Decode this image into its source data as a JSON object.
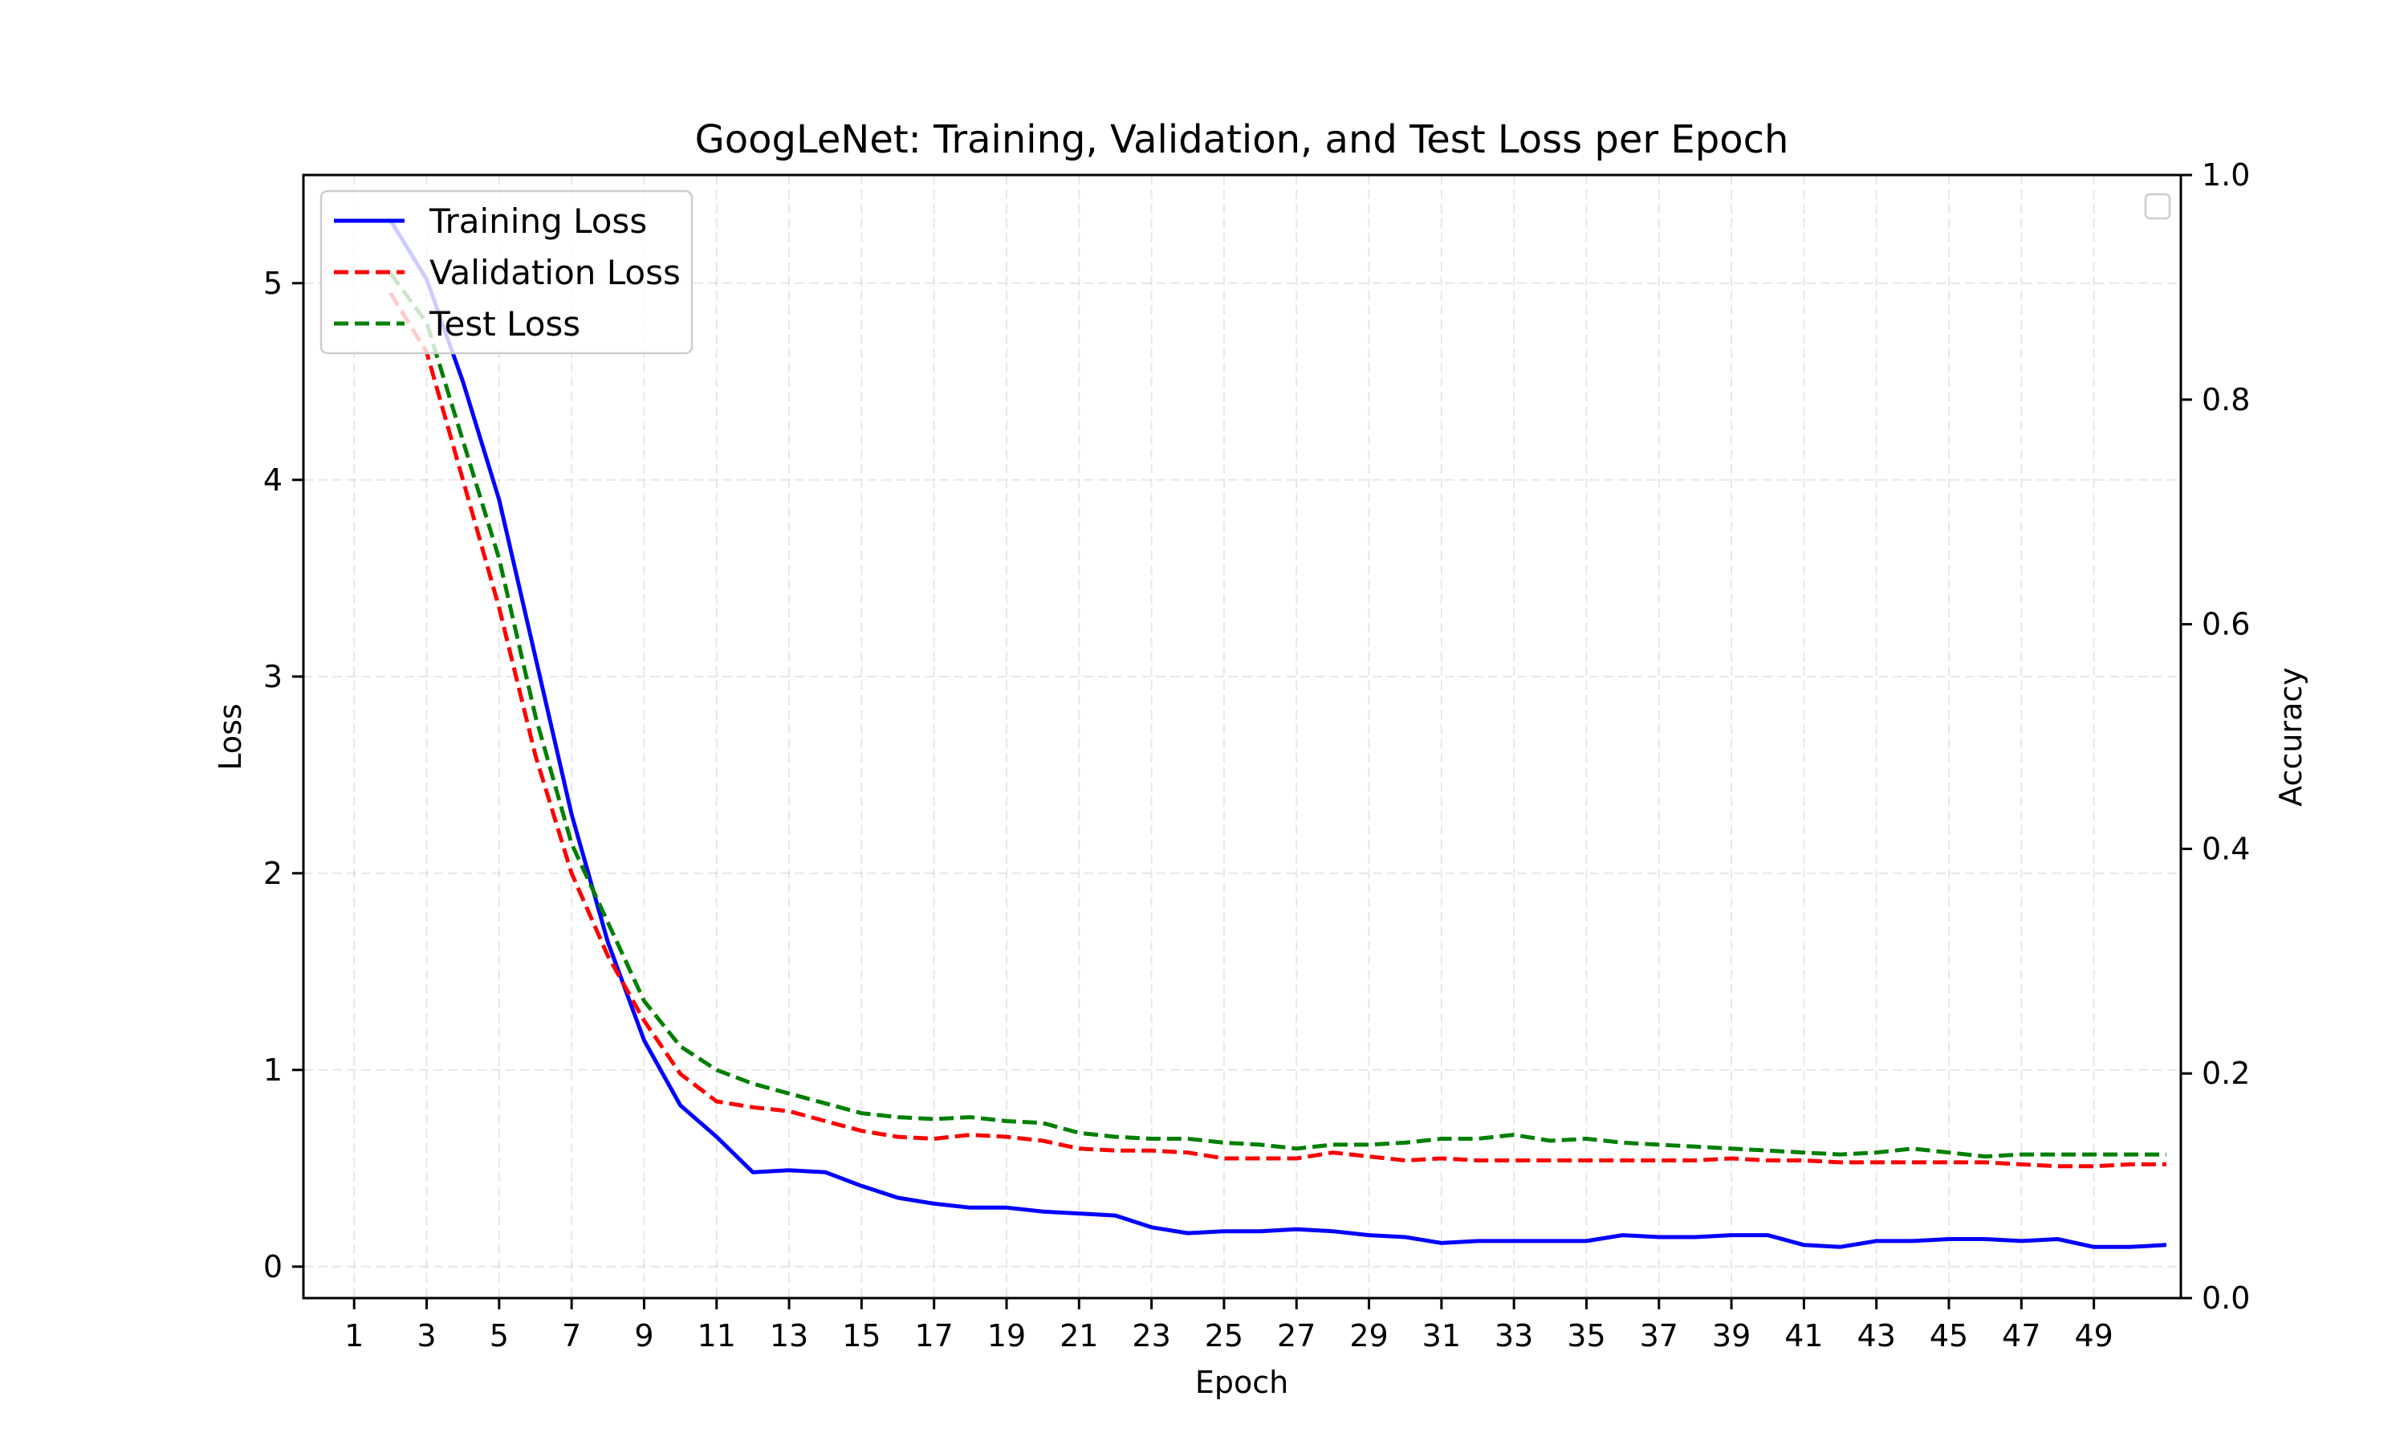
{
  "chart_data": {
    "type": "line",
    "title": "GoogLeNet: Training, Validation, and Test Loss per Epoch",
    "xlabel": "Epoch",
    "ylabel": "Loss",
    "y2label": "Accuracy",
    "xlim": [
      -0.4,
      51.4
    ],
    "ylim": [
      -0.16,
      5.55
    ],
    "y2lim": [
      0.0,
      1.0
    ],
    "x_ticks": [
      1,
      3,
      5,
      7,
      9,
      11,
      13,
      15,
      17,
      19,
      21,
      23,
      25,
      27,
      29,
      31,
      33,
      35,
      37,
      39,
      41,
      43,
      45,
      47,
      49
    ],
    "y_ticks": [
      0,
      1,
      2,
      3,
      4,
      5
    ],
    "y2_ticks": [
      0.0,
      0.2,
      0.4,
      0.6,
      0.8,
      1.0
    ],
    "grid": true,
    "legend_position": "upper-left",
    "secondary_legend": "empty, upper-right",
    "x": [
      2,
      3,
      4,
      5,
      6,
      7,
      8,
      9,
      10,
      11,
      12,
      13,
      14,
      15,
      16,
      17,
      18,
      19,
      20,
      21,
      22,
      23,
      24,
      25,
      26,
      27,
      28,
      29,
      30,
      31,
      32,
      33,
      34,
      35,
      36,
      37,
      38,
      39,
      40,
      41,
      42,
      43,
      44,
      45,
      46,
      47,
      48,
      49,
      50,
      51
    ],
    "series": [
      {
        "name": "Training Loss",
        "color": "#0000ff",
        "style": "solid",
        "values": [
          5.32,
          5.02,
          4.5,
          3.9,
          3.1,
          2.3,
          1.65,
          1.15,
          0.82,
          0.66,
          0.48,
          0.49,
          0.48,
          0.41,
          0.35,
          0.32,
          0.3,
          0.3,
          0.28,
          0.27,
          0.26,
          0.2,
          0.17,
          0.18,
          0.18,
          0.19,
          0.18,
          0.16,
          0.15,
          0.12,
          0.13,
          0.13,
          0.13,
          0.13,
          0.16,
          0.15,
          0.15,
          0.16,
          0.16,
          0.11,
          0.1,
          0.13,
          0.13,
          0.14,
          0.14,
          0.13,
          0.14,
          0.1,
          0.1,
          0.11
        ]
      },
      {
        "name": "Validation Loss",
        "color": "#ff0000",
        "style": "dashed",
        "values": [
          4.95,
          4.65,
          4.0,
          3.35,
          2.6,
          2.0,
          1.58,
          1.25,
          0.98,
          0.84,
          0.81,
          0.79,
          0.74,
          0.69,
          0.66,
          0.65,
          0.67,
          0.66,
          0.64,
          0.6,
          0.59,
          0.59,
          0.58,
          0.55,
          0.55,
          0.55,
          0.58,
          0.56,
          0.54,
          0.55,
          0.54,
          0.54,
          0.54,
          0.54,
          0.54,
          0.54,
          0.54,
          0.55,
          0.54,
          0.54,
          0.53,
          0.53,
          0.53,
          0.53,
          0.53,
          0.52,
          0.51,
          0.51,
          0.52,
          0.52
        ]
      },
      {
        "name": "Test Loss",
        "color": "#007f00",
        "style": "dashed",
        "values": [
          5.05,
          4.8,
          4.2,
          3.6,
          2.8,
          2.15,
          1.75,
          1.35,
          1.12,
          1.0,
          0.93,
          0.88,
          0.83,
          0.78,
          0.76,
          0.75,
          0.76,
          0.74,
          0.73,
          0.68,
          0.66,
          0.65,
          0.65,
          0.63,
          0.62,
          0.6,
          0.62,
          0.62,
          0.63,
          0.65,
          0.65,
          0.67,
          0.64,
          0.65,
          0.63,
          0.62,
          0.61,
          0.6,
          0.59,
          0.58,
          0.57,
          0.58,
          0.6,
          0.58,
          0.56,
          0.57,
          0.57,
          0.57,
          0.57,
          0.57
        ]
      }
    ]
  }
}
